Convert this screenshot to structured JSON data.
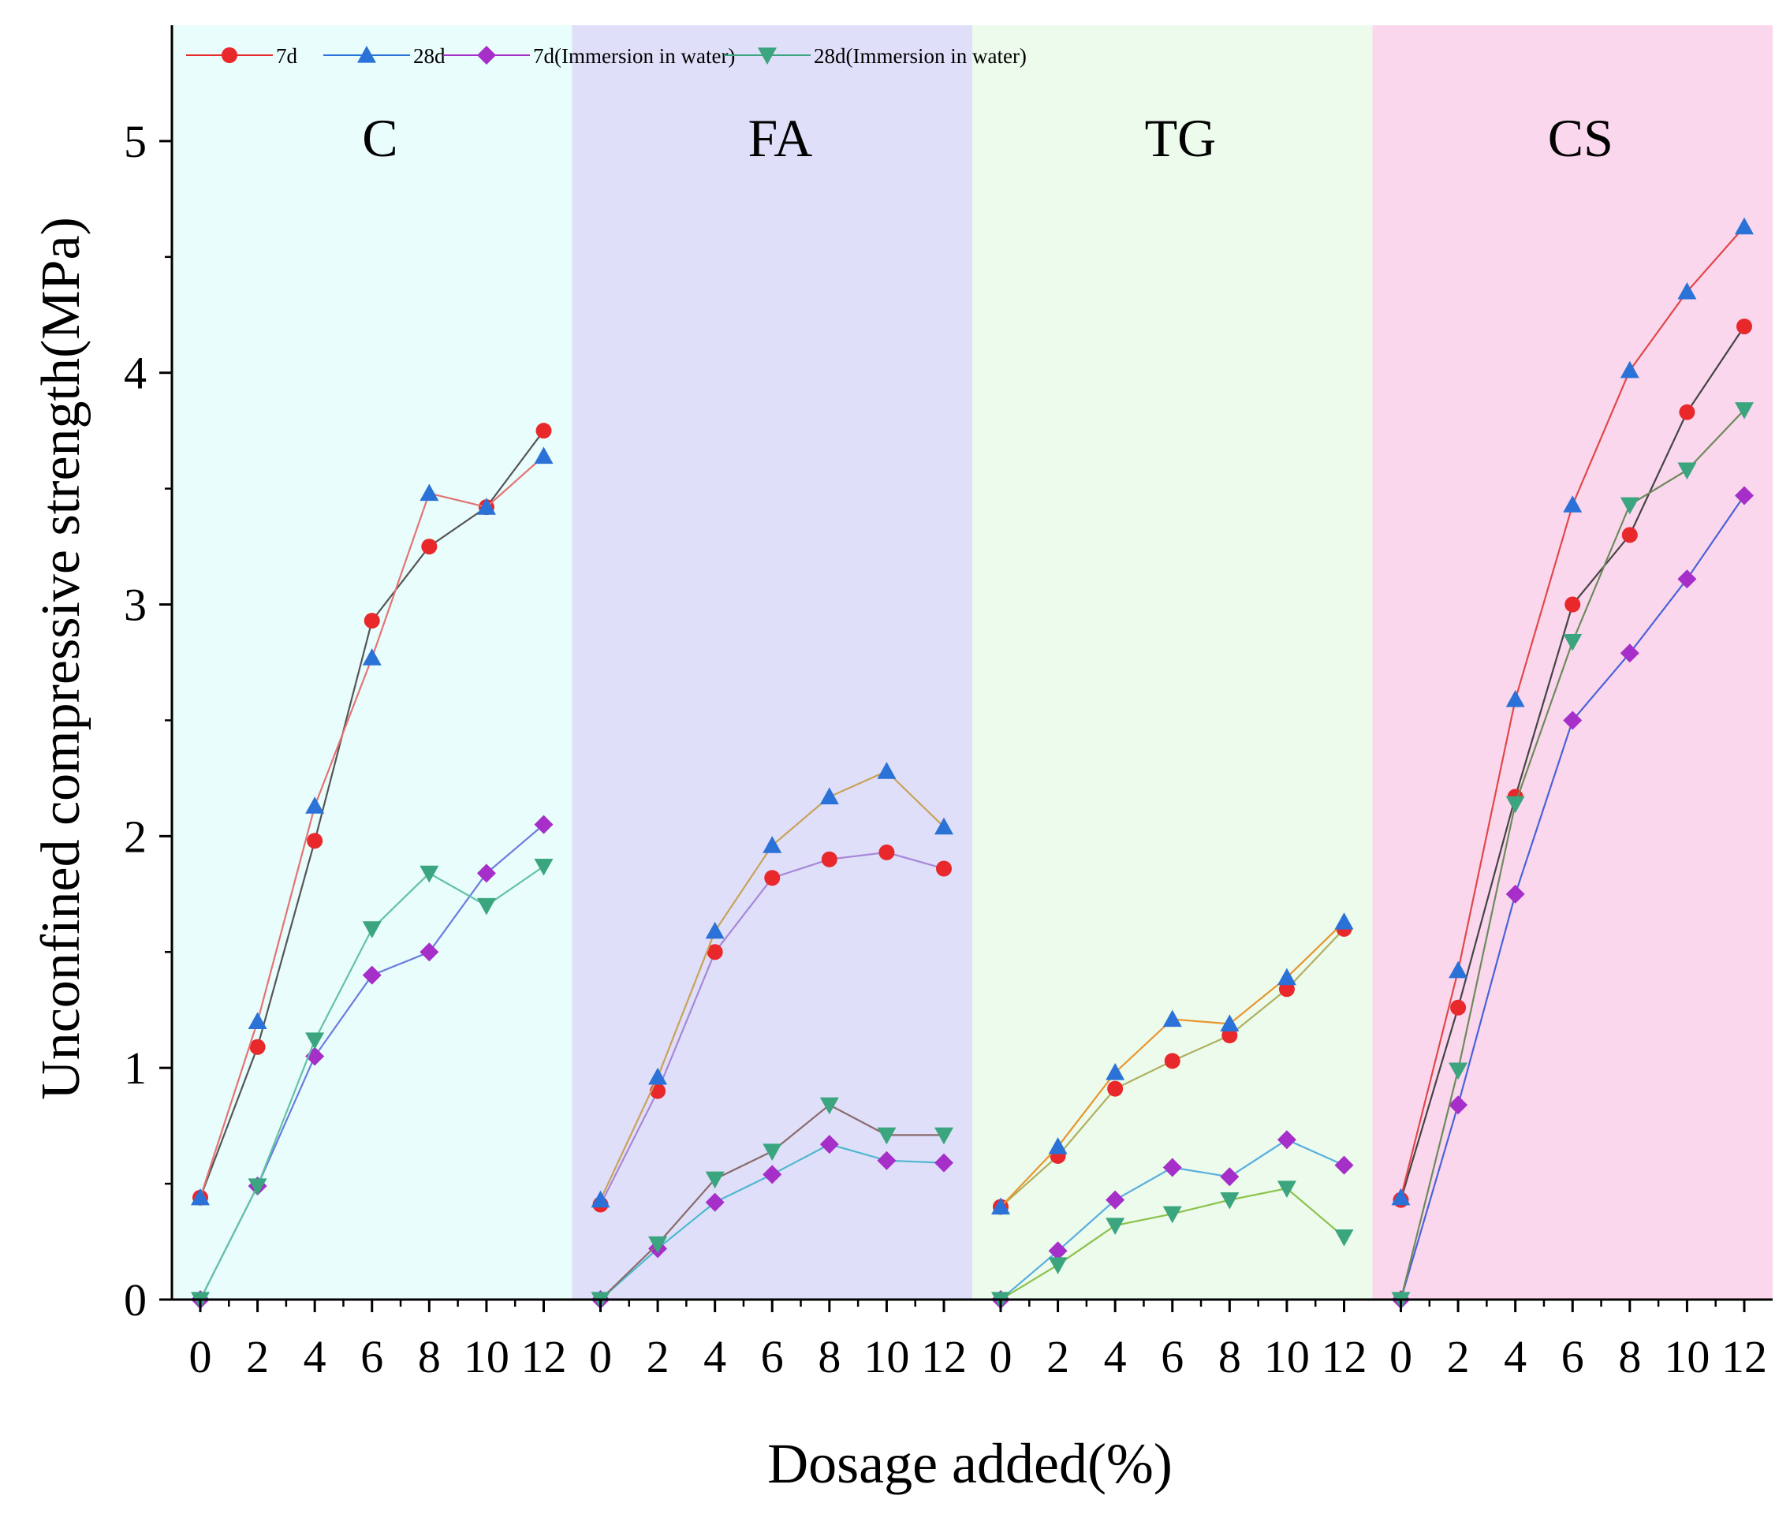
{
  "chart_data": {
    "type": "line",
    "ylabel": "Unconfined compressive strength(MPa)",
    "xlabel": "Dosage added(%)",
    "ylim": [
      0,
      5.5
    ],
    "yticks": [
      0,
      1,
      2,
      3,
      4,
      5
    ],
    "x": [
      0,
      2,
      4,
      6,
      8,
      10,
      12
    ],
    "x_tick_labels": [
      "0",
      "2",
      "4",
      "6",
      "8",
      "10",
      "12"
    ],
    "legend_position": "top-left",
    "legend": [
      {
        "key": "s7d",
        "label": "7d",
        "marker": "circle",
        "color": "#e8282b"
      },
      {
        "key": "s28d",
        "label": "28d",
        "marker": "triangle-up",
        "color": "#2b72d8"
      },
      {
        "key": "s7dw",
        "label": "7d(Immersion in water)",
        "marker": "diamond",
        "color": "#a62ec9"
      },
      {
        "key": "s28dw",
        "label": "28d(Immersion in water)",
        "marker": "triangle-down",
        "color": "#3aa57e"
      }
    ],
    "panels": [
      {
        "name": "C",
        "background": "#e9fdfc",
        "series": [
          {
            "key": "s7d",
            "name": "7d",
            "line_color": "#555555",
            "values": [
              0.44,
              1.09,
              1.98,
              2.93,
              3.25,
              3.42,
              3.75
            ]
          },
          {
            "key": "s28d",
            "name": "28d",
            "line_color": "#e57373",
            "values": [
              0.44,
              1.2,
              2.13,
              2.77,
              3.48,
              3.42,
              3.64
            ]
          },
          {
            "key": "s7dw",
            "name": "7d(Immersion in water)",
            "line_color": "#6b7be0",
            "values": [
              0.0,
              0.49,
              1.05,
              1.4,
              1.5,
              1.84,
              2.05
            ]
          },
          {
            "key": "s28dw",
            "name": "28d(Immersion in water)",
            "line_color": "#63c2a4",
            "values": [
              0.0,
              0.49,
              1.12,
              1.6,
              1.84,
              1.7,
              1.87
            ]
          }
        ]
      },
      {
        "name": "FA",
        "background": "#dfdff9",
        "series": [
          {
            "key": "s7d",
            "name": "7d",
            "line_color": "#a787d8",
            "values": [
              0.41,
              0.9,
              1.5,
              1.82,
              1.9,
              1.93,
              1.86
            ]
          },
          {
            "key": "s28d",
            "name": "28d",
            "line_color": "#c9a259",
            "values": [
              0.43,
              0.96,
              1.59,
              1.96,
              2.17,
              2.28,
              2.04
            ]
          },
          {
            "key": "s7dw",
            "name": "7d(Immersion in water)",
            "line_color": "#4fb8d0",
            "values": [
              0.0,
              0.22,
              0.42,
              0.54,
              0.67,
              0.6,
              0.59
            ]
          },
          {
            "key": "s28dw",
            "name": "28d(Immersion in water)",
            "line_color": "#8a6a6a",
            "values": [
              0.0,
              0.24,
              0.52,
              0.64,
              0.84,
              0.71,
              0.71
            ]
          }
        ]
      },
      {
        "name": "TG",
        "background": "#ecfbec",
        "series": [
          {
            "key": "s7d",
            "name": "7d",
            "line_color": "#b0b060",
            "values": [
              0.4,
              0.62,
              0.91,
              1.03,
              1.14,
              1.34,
              1.6
            ]
          },
          {
            "key": "s28d",
            "name": "28d",
            "line_color": "#e8962e",
            "values": [
              0.4,
              0.66,
              0.98,
              1.21,
              1.19,
              1.39,
              1.63
            ]
          },
          {
            "key": "s7dw",
            "name": "7d(Immersion in water)",
            "line_color": "#59aee0",
            "values": [
              0.0,
              0.21,
              0.43,
              0.57,
              0.53,
              0.69,
              0.58
            ]
          },
          {
            "key": "s28dw",
            "name": "28d(Immersion in water)",
            "line_color": "#8cc24a",
            "values": [
              0.0,
              0.15,
              0.32,
              0.37,
              0.43,
              0.48,
              0.27
            ]
          }
        ]
      },
      {
        "name": "CS",
        "background": "#fbd7ee",
        "series": [
          {
            "key": "s7d",
            "name": "7d",
            "line_color": "#444444",
            "values": [
              0.43,
              1.26,
              2.17,
              3.0,
              3.3,
              3.83,
              4.2
            ]
          },
          {
            "key": "s28d",
            "name": "28d",
            "line_color": "#e04848",
            "values": [
              0.44,
              1.42,
              2.59,
              3.43,
              4.01,
              4.35,
              4.63
            ]
          },
          {
            "key": "s7dw",
            "name": "7d(Immersion in water)",
            "line_color": "#4a62d8",
            "values": [
              0.0,
              0.84,
              1.75,
              2.5,
              2.79,
              3.11,
              3.47
            ]
          },
          {
            "key": "s28dw",
            "name": "28d(Immersion in water)",
            "line_color": "#6c8a5a",
            "values": [
              0.0,
              0.99,
              2.14,
              2.84,
              3.43,
              3.58,
              3.84
            ]
          }
        ]
      }
    ]
  }
}
